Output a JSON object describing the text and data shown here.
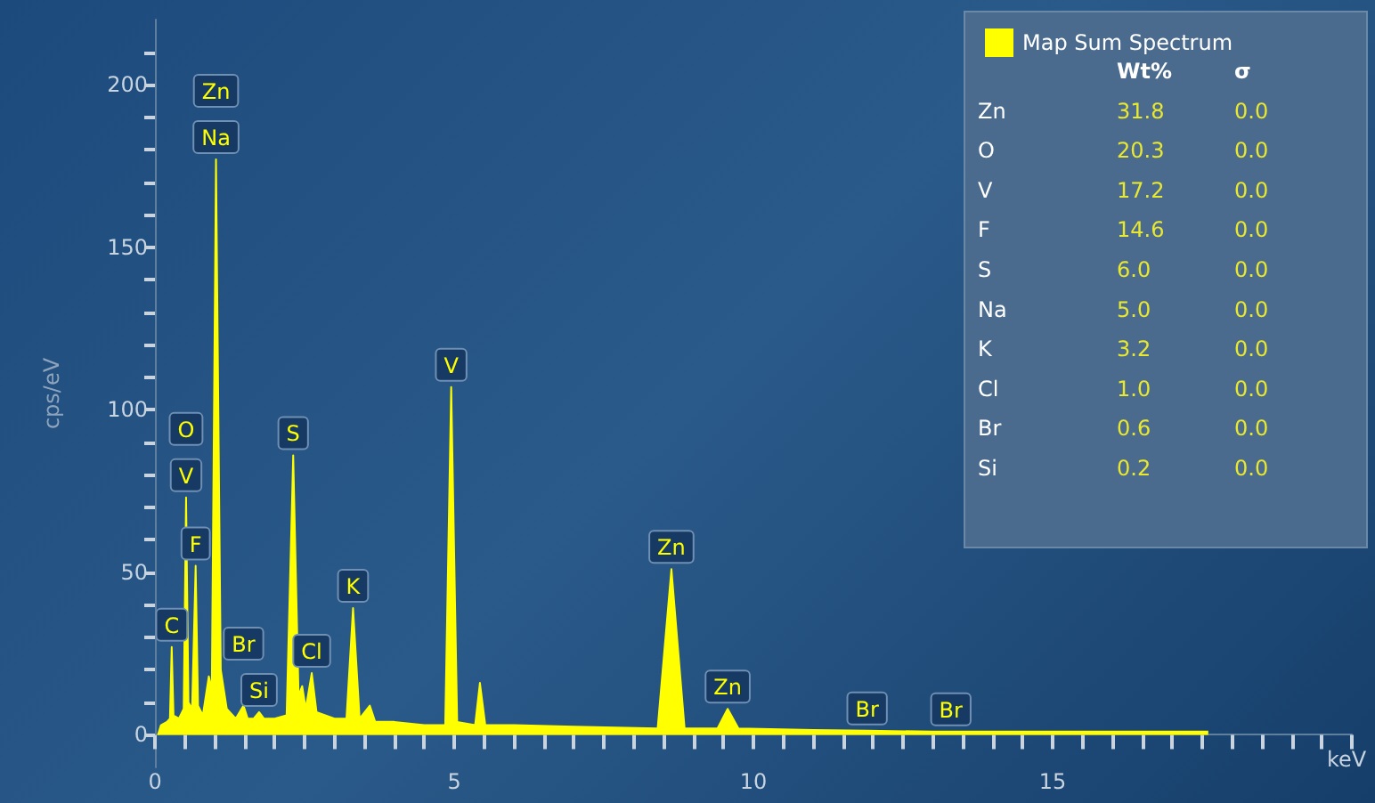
{
  "chart_data": {
    "type": "area",
    "xlabel": "keV",
    "ylabel": "cps/eV",
    "xlim": [
      0,
      20
    ],
    "ylim": [
      -10,
      220
    ],
    "xticks": [
      0,
      {
        "value": 0.5,
        "label": null
      },
      {
        "value": 1,
        "label": null
      },
      {
        "value": 1.5,
        "label": null
      },
      {
        "value": 2,
        "label": null
      },
      {
        "value": 2.5,
        "label": null
      },
      {
        "value": 3,
        "label": null
      },
      {
        "value": 3.5,
        "label": null
      },
      {
        "value": 4,
        "label": null
      },
      {
        "value": 4.5,
        "label": null
      },
      5,
      {
        "value": 5.5,
        "label": null
      },
      {
        "value": 6,
        "label": null
      },
      {
        "value": 6.5,
        "label": null
      },
      {
        "value": 7,
        "label": null
      },
      {
        "value": 7.5,
        "label": null
      },
      {
        "value": 8,
        "label": null
      },
      {
        "value": 8.5,
        "label": null
      },
      {
        "value": 9,
        "label": null
      },
      {
        "value": 9.5,
        "label": null
      },
      10,
      {
        "value": 10.5,
        "label": null
      },
      {
        "value": 11,
        "label": null
      },
      {
        "value": 11.5,
        "label": null
      },
      {
        "value": 12,
        "label": null
      },
      {
        "value": 12.5,
        "label": null
      },
      {
        "value": 13,
        "label": null
      },
      {
        "value": 13.5,
        "label": null
      },
      {
        "value": 14,
        "label": null
      },
      {
        "value": 14.5,
        "label": null
      },
      15,
      {
        "value": 15.5,
        "label": null
      },
      {
        "value": 16,
        "label": null
      },
      {
        "value": 16.5,
        "label": null
      },
      {
        "value": 17,
        "label": null
      },
      {
        "value": 17.5,
        "label": null
      },
      {
        "value": 18,
        "label": null
      },
      {
        "value": 18.5,
        "label": null
      },
      {
        "value": 19,
        "label": null
      },
      {
        "value": 19.5,
        "label": null
      },
      {
        "value": 20,
        "label": null
      }
    ],
    "yticks": [
      0,
      {
        "value": 10,
        "label": null
      },
      {
        "value": 20,
        "label": null
      },
      {
        "value": 30,
        "label": null
      },
      {
        "value": 40,
        "label": null
      },
      50,
      {
        "value": 60,
        "label": null
      },
      {
        "value": 70,
        "label": null
      },
      {
        "value": 80,
        "label": null
      },
      {
        "value": 90,
        "label": null
      },
      100,
      {
        "value": 110,
        "label": null
      },
      {
        "value": 120,
        "label": null
      },
      {
        "value": 130,
        "label": null
      },
      {
        "value": 140,
        "label": null
      },
      150,
      {
        "value": 160,
        "label": null
      },
      {
        "value": 170,
        "label": null
      },
      {
        "value": 180,
        "label": null
      },
      {
        "value": 190,
        "label": null
      },
      200,
      {
        "value": 210,
        "label": null
      }
    ],
    "grid": false,
    "legend": "top right",
    "series": [
      {
        "name": "Map Sum Spectrum",
        "color": "#ffff00",
        "x": [
          0.05,
          0.1,
          0.2,
          0.25,
          0.28,
          0.31,
          0.4,
          0.48,
          0.52,
          0.56,
          0.62,
          0.68,
          0.72,
          0.8,
          0.85,
          0.9,
          0.95,
          1.02,
          1.1,
          1.2,
          1.35,
          1.48,
          1.55,
          1.65,
          1.74,
          1.82,
          2.0,
          2.2,
          2.31,
          2.4,
          2.46,
          2.52,
          2.62,
          2.7,
          3.0,
          3.2,
          3.31,
          3.42,
          3.59,
          3.68,
          4.0,
          4.5,
          4.85,
          4.95,
          5.05,
          5.35,
          5.43,
          5.52,
          6,
          7,
          8.4,
          8.63,
          8.85,
          9.4,
          9.57,
          9.75,
          11,
          11.9,
          13,
          13.3,
          15,
          17.6
        ],
        "values": [
          0,
          3,
          4,
          5,
          27,
          6,
          5,
          8,
          73,
          10,
          8,
          52,
          9,
          6,
          12,
          18,
          14,
          177,
          20,
          8,
          5,
          9,
          5,
          5,
          7,
          5,
          5,
          6,
          86,
          12,
          15,
          8,
          19,
          7,
          5,
          5,
          39,
          5,
          9,
          4,
          4,
          3,
          3,
          107,
          4,
          3,
          16,
          3,
          3,
          2.5,
          2,
          51,
          2,
          2,
          8,
          2,
          1.5,
          1.3,
          1,
          1,
          1,
          1
        ]
      }
    ],
    "annotations": [
      {
        "text": "Na",
        "x": 1.02,
        "y": 177
      },
      {
        "text": "Zn",
        "x": 1.02,
        "y": 177
      },
      {
        "text": "V",
        "x": 0.52,
        "y": 73
      },
      {
        "text": "O",
        "x": 0.52,
        "y": 73
      },
      {
        "text": "F",
        "x": 0.68,
        "y": 52
      },
      {
        "text": "C",
        "x": 0.28,
        "y": 27
      },
      {
        "text": "Si",
        "x": 1.74,
        "y": 7
      },
      {
        "text": "Br",
        "x": 1.48,
        "y": 9
      },
      {
        "text": "S",
        "x": 2.31,
        "y": 86
      },
      {
        "text": "Cl",
        "x": 2.62,
        "y": 19
      },
      {
        "text": "K",
        "x": 3.31,
        "y": 39
      },
      {
        "text": "V",
        "x": 4.95,
        "y": 107
      },
      {
        "text": "Zn",
        "x": 8.63,
        "y": 51
      },
      {
        "text": "Zn",
        "x": 9.57,
        "y": 8
      },
      {
        "text": "Br",
        "x": 11.9,
        "y": 1.3
      },
      {
        "text": "Br",
        "x": 13.3,
        "y": 1
      },
      "Wt%",
      "σ",
      "Zn",
      "31.8",
      "0.0",
      "O",
      "20.3",
      "0.0",
      "V",
      "17.2",
      "0.0",
      "F",
      "14.6",
      "0.0",
      "S",
      "6.0",
      "0.0",
      "Na",
      "5.0",
      "0.0",
      "K",
      "3.2",
      "0.0",
      "Cl",
      "1.0",
      "0.0",
      "Br",
      "0.6",
      "0.0",
      "Si",
      "0.2",
      "0.0"
    ]
  }
}
